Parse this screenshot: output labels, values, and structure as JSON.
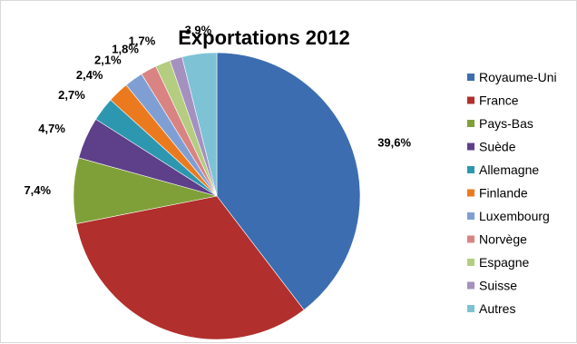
{
  "chart_data": {
    "type": "pie",
    "title": "Exportations 2012",
    "legend_position": "right",
    "slices": [
      {
        "label": "Royaume-Uni",
        "value": 39.6,
        "display": "39,6%",
        "color": "#3c6db0"
      },
      {
        "label": "France",
        "value": 32.3,
        "display": "32,3%",
        "color": "#b12f2c"
      },
      {
        "label": "Pays-Bas",
        "value": 7.4,
        "display": "7,4%",
        "color": "#7fa038"
      },
      {
        "label": "Suède",
        "value": 4.7,
        "display": "4,7%",
        "color": "#5e3f89"
      },
      {
        "label": "Allemagne",
        "value": 2.7,
        "display": "2,7%",
        "color": "#2d97b0"
      },
      {
        "label": "Finlande",
        "value": 2.4,
        "display": "2,4%",
        "color": "#eb7a1f"
      },
      {
        "label": "Luxembourg",
        "value": 2.1,
        "display": "2,1%",
        "color": "#7f9fd4"
      },
      {
        "label": "Norvège",
        "value": 1.8,
        "display": "1,8%",
        "color": "#d98482"
      },
      {
        "label": "Espagne",
        "value": 1.7,
        "display": "1,7%",
        "color": "#b4cd81"
      },
      {
        "label": "Suisse",
        "value": 1.4,
        "display": "",
        "color": "#a491c0"
      },
      {
        "label": "Autres",
        "value": 3.9,
        "display": "3,9%",
        "color": "#7ec2d6"
      }
    ]
  }
}
